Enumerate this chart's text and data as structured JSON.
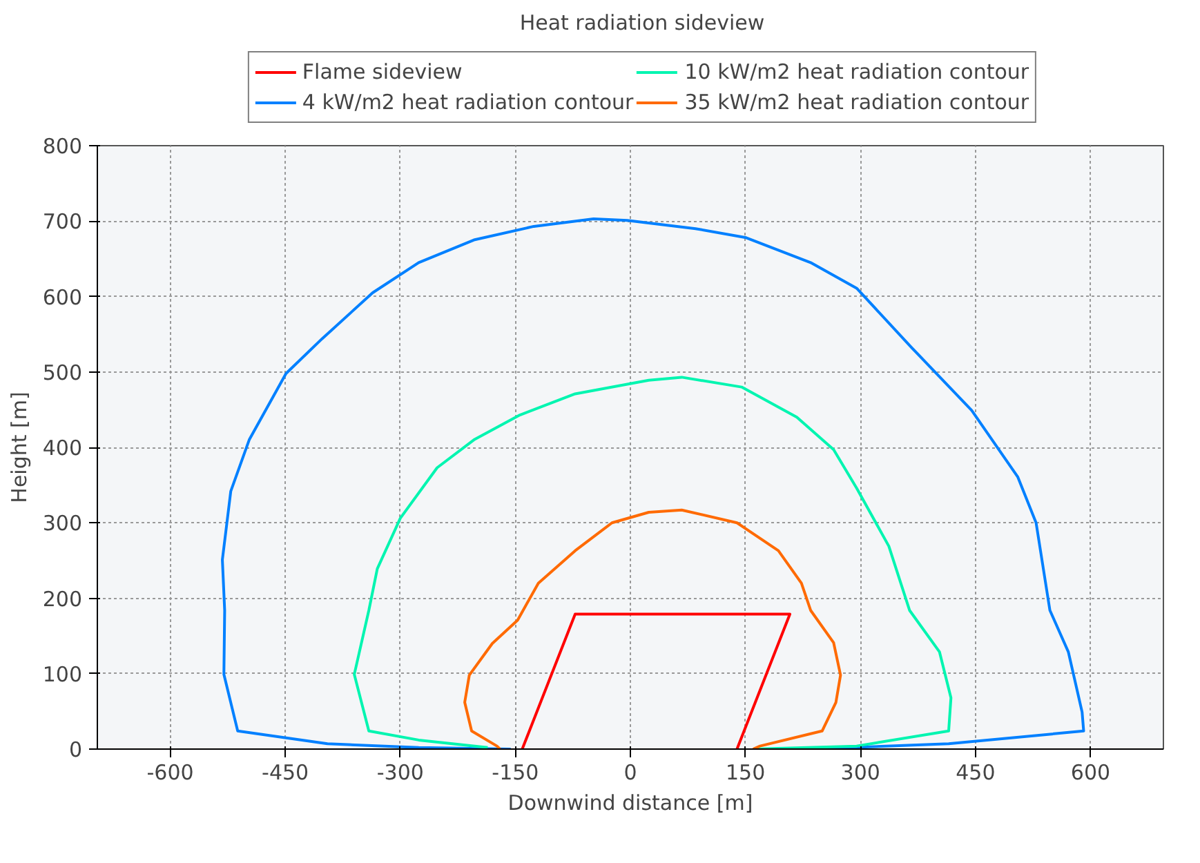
{
  "chart_data": {
    "type": "line",
    "title": "Heat radiation sideview",
    "xlabel": "Downwind distance [m]",
    "ylabel": "Height [m]",
    "xlim": [
      -695,
      695
    ],
    "ylim": [
      0,
      800
    ],
    "xticks": [
      -600,
      -450,
      -300,
      -150,
      0,
      150,
      300,
      450,
      600
    ],
    "yticks": [
      0,
      100,
      200,
      300,
      400,
      500,
      600,
      700,
      800
    ],
    "grid": true,
    "legend": "top",
    "marker": "none",
    "line_style": "solid",
    "series": [
      {
        "name": "Flame sideview",
        "color": "#ff0000",
        "x": [
          -141,
          -72,
          208,
          139
        ],
        "values": [
          0,
          179,
          179,
          0
        ]
      },
      {
        "name": "4 kW/m2 heat radiation contour",
        "color": "#0080ff",
        "x": [
          -156,
          -276,
          -395,
          -512,
          -530,
          -529,
          -532,
          -521,
          -497,
          -449,
          -402,
          -336,
          -276,
          -204,
          -126,
          -48,
          -4,
          85,
          151,
          235,
          295,
          367,
          445,
          505,
          529,
          547,
          571,
          589,
          591,
          415,
          235
        ],
        "values": [
          0,
          2,
          7,
          24,
          99,
          184,
          251,
          342,
          410,
          498,
          544,
          605,
          645,
          675,
          693,
          703,
          701,
          690,
          678,
          645,
          611,
          532,
          449,
          361,
          300,
          184,
          129,
          49,
          24,
          7,
          0
        ]
      },
      {
        "name": "10 kW/m2 heat radiation contour",
        "color": "#00f5b0",
        "x": [
          -186,
          -276,
          -341,
          -360,
          -341,
          -330,
          -300,
          -252,
          -204,
          -144,
          -72,
          24,
          67,
          145,
          217,
          265,
          295,
          337,
          364,
          403,
          418,
          415,
          295,
          160
        ],
        "values": [
          2,
          12,
          24,
          99,
          184,
          239,
          306,
          373,
          410,
          443,
          471,
          489,
          493,
          480,
          440,
          397,
          346,
          269,
          184,
          129,
          68,
          24,
          4,
          0
        ]
      },
      {
        "name": "35 kW/m2 heat radiation contour",
        "color": "#ff6a00",
        "x": [
          -170,
          -174,
          -207,
          -216,
          -210,
          -180,
          -147,
          -120,
          -72,
          -24,
          24,
          67,
          139,
          193,
          223,
          235,
          265,
          274,
          268,
          250,
          169,
          160
        ],
        "values": [
          0,
          4,
          24,
          62,
          98,
          140,
          171,
          220,
          263,
          300,
          314,
          317,
          300,
          263,
          220,
          184,
          141,
          98,
          62,
          24,
          4,
          0
        ]
      }
    ]
  }
}
